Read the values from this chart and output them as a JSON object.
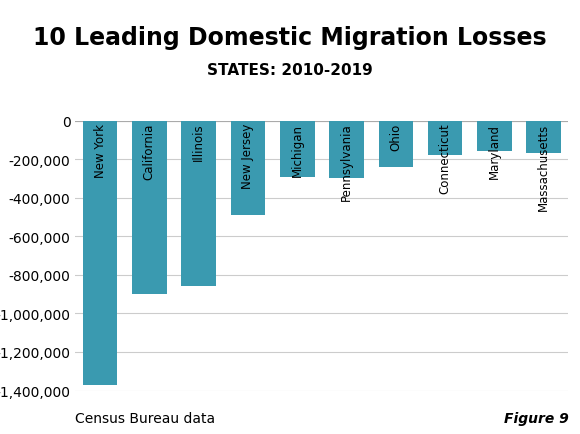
{
  "title": "10 Leading Domestic Migration Losses",
  "subtitle": "STATES: 2010-2019",
  "categories": [
    "New York",
    "California",
    "Illinois",
    "New Jersey",
    "Michigan",
    "Pennsylvania",
    "Ohio",
    "Connecticut",
    "Maryland",
    "Massachusetts"
  ],
  "values": [
    -1370000,
    -900000,
    -860000,
    -490000,
    -290000,
    -295000,
    -240000,
    -175000,
    -155000,
    -165000
  ],
  "bar_color": "#3a9ab0",
  "ylim": [
    -1400000,
    0
  ],
  "yticks": [
    0,
    -200000,
    -400000,
    -600000,
    -800000,
    -1000000,
    -1200000,
    -1400000
  ],
  "footnote_left": "Census Bureau data",
  "footnote_right": "Figure 9",
  "background_color": "#ffffff",
  "title_fontsize": 17,
  "subtitle_fontsize": 11,
  "tick_fontsize": 10,
  "footnote_fontsize": 10
}
